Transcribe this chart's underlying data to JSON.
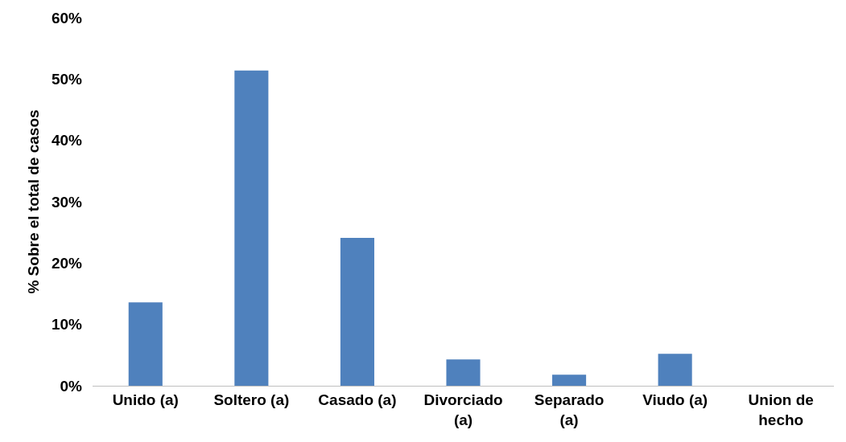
{
  "chart_data": {
    "type": "bar",
    "ylabel": "% Sobre el total de casos",
    "categories": [
      "Unido (a)",
      "Soltero (a)",
      "Casado (a)",
      "Divorciado (a)",
      "Separado (a)",
      "Viudo (a)",
      "Union de hecho"
    ],
    "values": [
      13.6,
      51.4,
      24.1,
      4.3,
      1.8,
      5.2,
      0
    ],
    "color": "#4f81bd",
    "ylim": [
      0,
      60
    ],
    "yticks": [
      {
        "value": 0,
        "label": "0%"
      },
      {
        "value": 10,
        "label": "10%"
      },
      {
        "value": 20,
        "label": "20%"
      },
      {
        "value": 30,
        "label": "30%"
      },
      {
        "value": 40,
        "label": "40%"
      },
      {
        "value": 50,
        "label": "50%"
      },
      {
        "value": 60,
        "label": "60%"
      }
    ],
    "grid": false
  }
}
